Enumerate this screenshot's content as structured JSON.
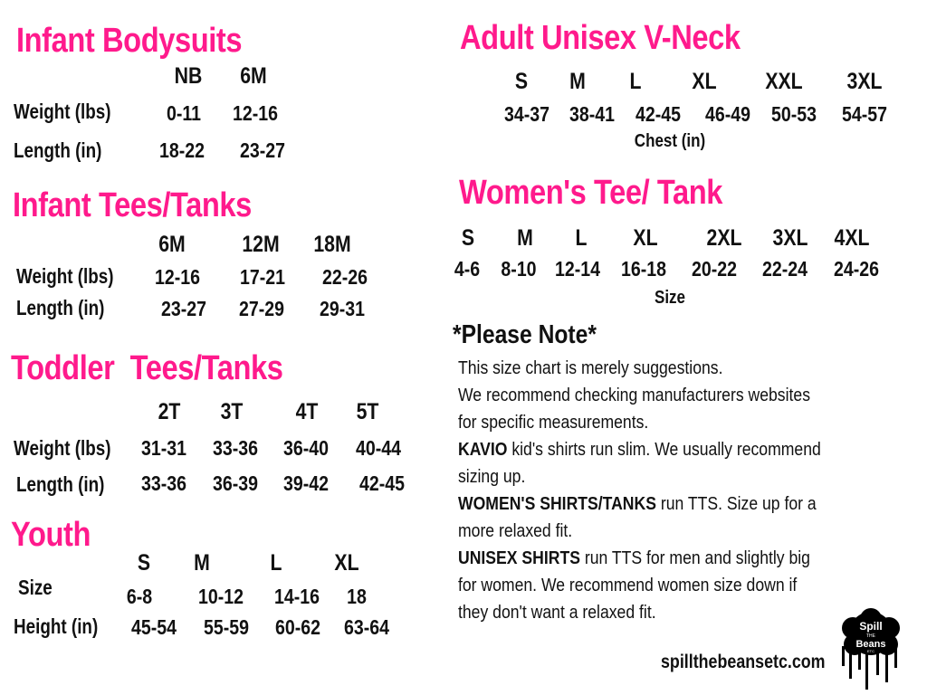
{
  "colors": {
    "heading": "#ff1a8c",
    "text": "#111111"
  },
  "infant_bodysuits": {
    "title": "Infant Bodysuits",
    "sizes": [
      "NB",
      "6M"
    ],
    "rows": [
      {
        "label": "Weight (lbs)",
        "values": [
          "0-11",
          "12-16"
        ]
      },
      {
        "label": "Length (in)",
        "values": [
          "18-22",
          "23-27"
        ]
      }
    ]
  },
  "infant_tees": {
    "title": "Infant Tees/Tanks",
    "sizes": [
      "6M",
      "12M",
      "18M"
    ],
    "rows": [
      {
        "label": "Weight (lbs)",
        "values": [
          "12-16",
          "17-21",
          "22-26"
        ]
      },
      {
        "label": "Length (in)",
        "values": [
          "23-27",
          "27-29",
          "29-31"
        ]
      }
    ]
  },
  "toddler_tees": {
    "title": "Toddler  Tees/Tanks",
    "sizes": [
      "2T",
      "3T",
      "4T",
      "5T"
    ],
    "rows": [
      {
        "label": "Weight (lbs)",
        "values": [
          "31-31",
          "33-36",
          "36-40",
          "40-44"
        ]
      },
      {
        "label": "Length (in)",
        "values": [
          "33-36",
          "36-39",
          "39-42",
          "42-45"
        ]
      }
    ]
  },
  "youth": {
    "title": "Youth",
    "sizes": [
      "S",
      "M",
      "L",
      "XL"
    ],
    "rows": [
      {
        "label": "Size",
        "values": [
          "6-8",
          "10-12",
          "14-16",
          "18"
        ]
      },
      {
        "label": "Height (in)",
        "values": [
          "45-54",
          "55-59",
          "60-62",
          "63-64"
        ]
      }
    ]
  },
  "adult_unisex": {
    "title": "Adult Unisex V-Neck",
    "sizes": [
      "S",
      "M",
      "L",
      "XL",
      "XXL",
      "3XL"
    ],
    "values": [
      "34-37",
      "38-41",
      "42-45",
      "46-49",
      "50-53",
      "54-57"
    ],
    "caption": "Chest (in)"
  },
  "womens_tee": {
    "title": "Women's Tee/ Tank",
    "sizes": [
      "S",
      "M",
      "L",
      "XL",
      "2XL",
      "3XL",
      "4XL"
    ],
    "values": [
      "4-6",
      "8-10",
      "12-14",
      "16-18",
      "20-22",
      "22-24",
      "24-26"
    ],
    "caption": "Size"
  },
  "note": {
    "title": "*Please Note*",
    "lines": [
      {
        "bold": "",
        "text": "This size chart is merely suggestions."
      },
      {
        "bold": "",
        "text": "We recommend checking manufacturers websites"
      },
      {
        "bold": "",
        "text": "for specific measurements."
      },
      {
        "bold": "KAVIO",
        "text": " kid's shirts run slim. We usually recommend"
      },
      {
        "bold": "",
        "text": "sizing up."
      },
      {
        "bold": "WOMEN'S SHIRTS/TANKS",
        "text": " run TTS. Size up for a"
      },
      {
        "bold": "",
        "text": "more relaxed fit."
      },
      {
        "bold": "UNISEX SHIRTS",
        "text": " run TTS for men and slightly big"
      },
      {
        "bold": "",
        "text": "for women. We recommend women size down if"
      },
      {
        "bold": "",
        "text": "they don't want a relaxed fit."
      }
    ]
  },
  "website": "spillthebeansetc.com",
  "logo": {
    "text": "Spill the Beans etc"
  }
}
